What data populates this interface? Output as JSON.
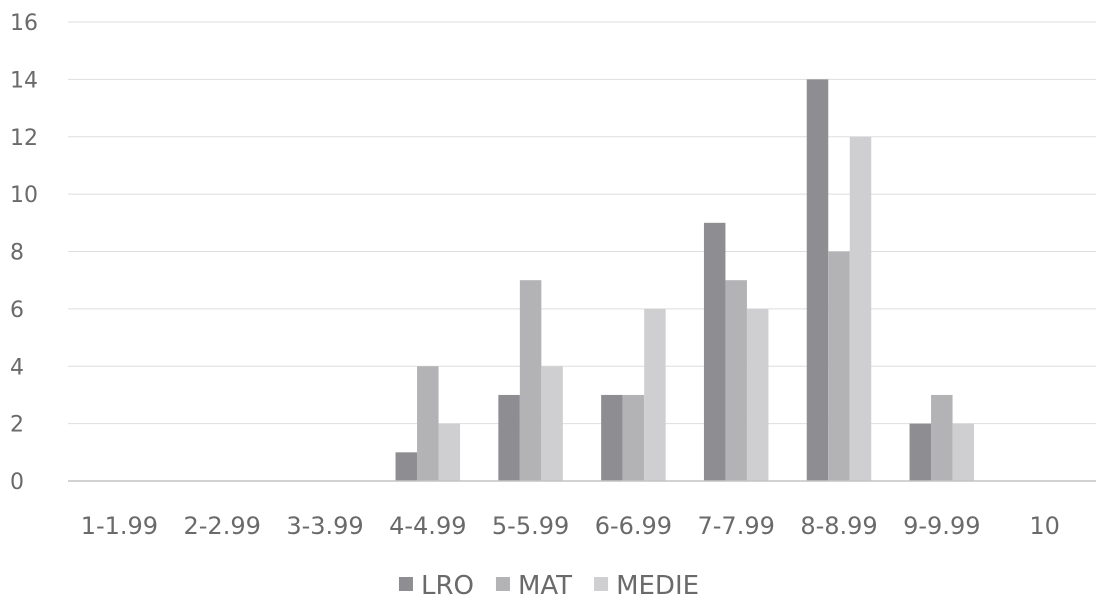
{
  "chart_data": {
    "type": "bar",
    "title": "",
    "xlabel": "",
    "ylabel": "",
    "ylim": [
      0,
      16
    ],
    "yticks": [
      0,
      2,
      4,
      6,
      8,
      10,
      12,
      14,
      16
    ],
    "grid": true,
    "legend_position": "bottom",
    "categories": [
      "1-1.99",
      "2-2.99",
      "3-3.99",
      "4-4.99",
      "5-5.99",
      "6-6.99",
      "7-7.99",
      "8-8.99",
      "9-9.99",
      "10"
    ],
    "series": [
      {
        "name": "LRO",
        "color": "#8e8e92",
        "values": [
          0,
          0,
          0,
          1,
          3,
          3,
          9,
          14,
          2,
          0
        ]
      },
      {
        "name": "MAT",
        "color": "#b3b3b6",
        "values": [
          0,
          0,
          0,
          4,
          7,
          3,
          7,
          8,
          3,
          0
        ]
      },
      {
        "name": "MEDIE",
        "color": "#cfcfd2",
        "values": [
          0,
          0,
          0,
          2,
          4,
          6,
          6,
          12,
          2,
          0
        ]
      }
    ]
  }
}
